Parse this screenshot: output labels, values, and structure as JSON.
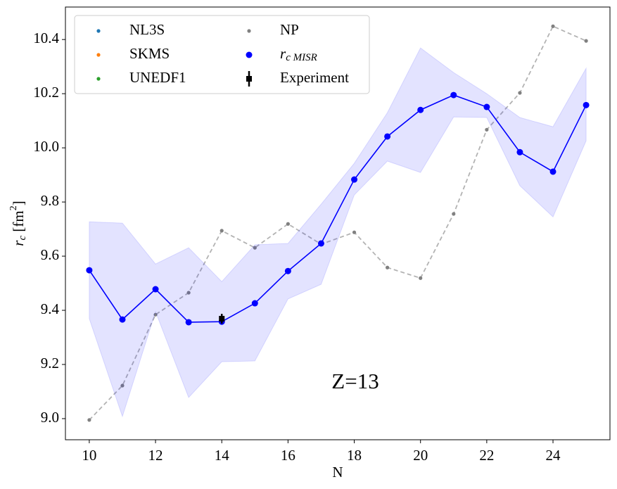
{
  "chart_data": {
    "type": "line",
    "x_label": "N",
    "y_label": "rc [fm2]",
    "annotation": "Z=13",
    "x": [
      10,
      11,
      12,
      13,
      14,
      15,
      16,
      17,
      18,
      19,
      20,
      21,
      22,
      23,
      24,
      25
    ],
    "xlim": [
      9.28,
      25.72
    ],
    "ylim": [
      8.922,
      10.52
    ],
    "xticks": [
      10,
      12,
      14,
      16,
      18,
      20,
      22,
      24
    ],
    "yticks": [
      {
        "value": 9,
        "label": "9.0"
      },
      9.2,
      9.4,
      9.6,
      9.8,
      {
        "value": 10,
        "label": "10.0"
      },
      10.2,
      10.4
    ],
    "legend_position": "upper left",
    "series": [
      {
        "name": "NL3S",
        "color": "#1f77b4",
        "values": [
          null,
          null,
          null,
          null,
          null,
          null,
          null,
          null,
          null,
          null,
          null,
          null,
          null,
          null,
          null,
          null
        ]
      },
      {
        "name": "SKMS",
        "color": "#ff7f0e",
        "values": [
          null,
          null,
          null,
          null,
          null,
          null,
          null,
          null,
          null,
          null,
          null,
          null,
          null,
          null,
          null,
          null
        ]
      },
      {
        "name": "UNEDF1",
        "color": "#2ca02c",
        "values": [
          null,
          null,
          null,
          null,
          null,
          null,
          null,
          null,
          null,
          null,
          null,
          null,
          null,
          null,
          null,
          null
        ]
      },
      {
        "name": "NP",
        "color": "#808080",
        "style": "dashed",
        "values": [
          8.995,
          9.122,
          9.384,
          9.465,
          9.694,
          9.631,
          9.719,
          9.644,
          9.688,
          9.558,
          9.519,
          9.756,
          10.067,
          10.203,
          10.449,
          10.395
        ]
      },
      {
        "name": "rc MISR",
        "color": "#0000ff",
        "style": "solid",
        "values": [
          9.548,
          9.366,
          9.478,
          9.356,
          9.358,
          9.426,
          9.545,
          9.647,
          9.883,
          10.042,
          10.14,
          10.195,
          10.151,
          9.984,
          9.912,
          10.158
        ],
        "band_upper": [
          9.727,
          9.722,
          9.571,
          9.631,
          9.506,
          9.642,
          9.647,
          9.792,
          9.943,
          10.13,
          10.369,
          10.278,
          10.2,
          10.112,
          10.078,
          10.294
        ],
        "band_lower": [
          9.369,
          9.008,
          9.395,
          9.078,
          9.21,
          9.213,
          9.442,
          9.496,
          9.826,
          9.951,
          9.909,
          10.114,
          10.112,
          9.86,
          9.745,
          10.026
        ]
      },
      {
        "name": "Experiment",
        "color": "#000000",
        "x": [
          14
        ],
        "values": [
          9.369
        ],
        "errors": [
          0.018
        ]
      }
    ]
  }
}
